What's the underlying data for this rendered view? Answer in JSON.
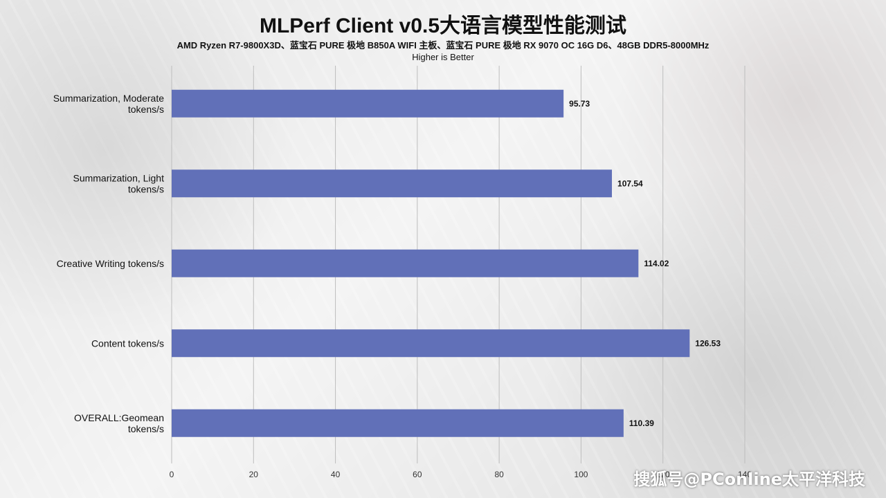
{
  "chart_data": {
    "type": "bar",
    "orientation": "horizontal",
    "title": "MLPerf Client v0.5大语言模型性能测试",
    "subtitle": "AMD Ryzen R7-9800X3D、蓝宝石 PURE 极地 B850A WIFI 主板、蓝宝石 PURE 极地 RX 9070 OC 16G D6、48GB DDR5-8000MHz",
    "note": "Higher is Better",
    "categories": [
      [
        "Summarization, Moderate",
        "tokens/s"
      ],
      [
        "Summarization, Light",
        "tokens/s"
      ],
      [
        "Creative Writing tokens/s"
      ],
      [
        "Content tokens/s"
      ],
      [
        "OVERALL:Geomean",
        "tokens/s"
      ]
    ],
    "values": [
      95.73,
      107.54,
      114.02,
      126.53,
      110.39
    ],
    "value_labels": [
      "95.73",
      "107.54",
      "114.02",
      "126.53",
      "110.39"
    ],
    "xlim": [
      0,
      140
    ],
    "xticks": [
      0,
      20,
      40,
      60,
      80,
      100,
      120,
      140
    ],
    "grid": true,
    "bar_color": "#6170b8"
  },
  "watermark": "搜狐号@PConline太平洋科技"
}
